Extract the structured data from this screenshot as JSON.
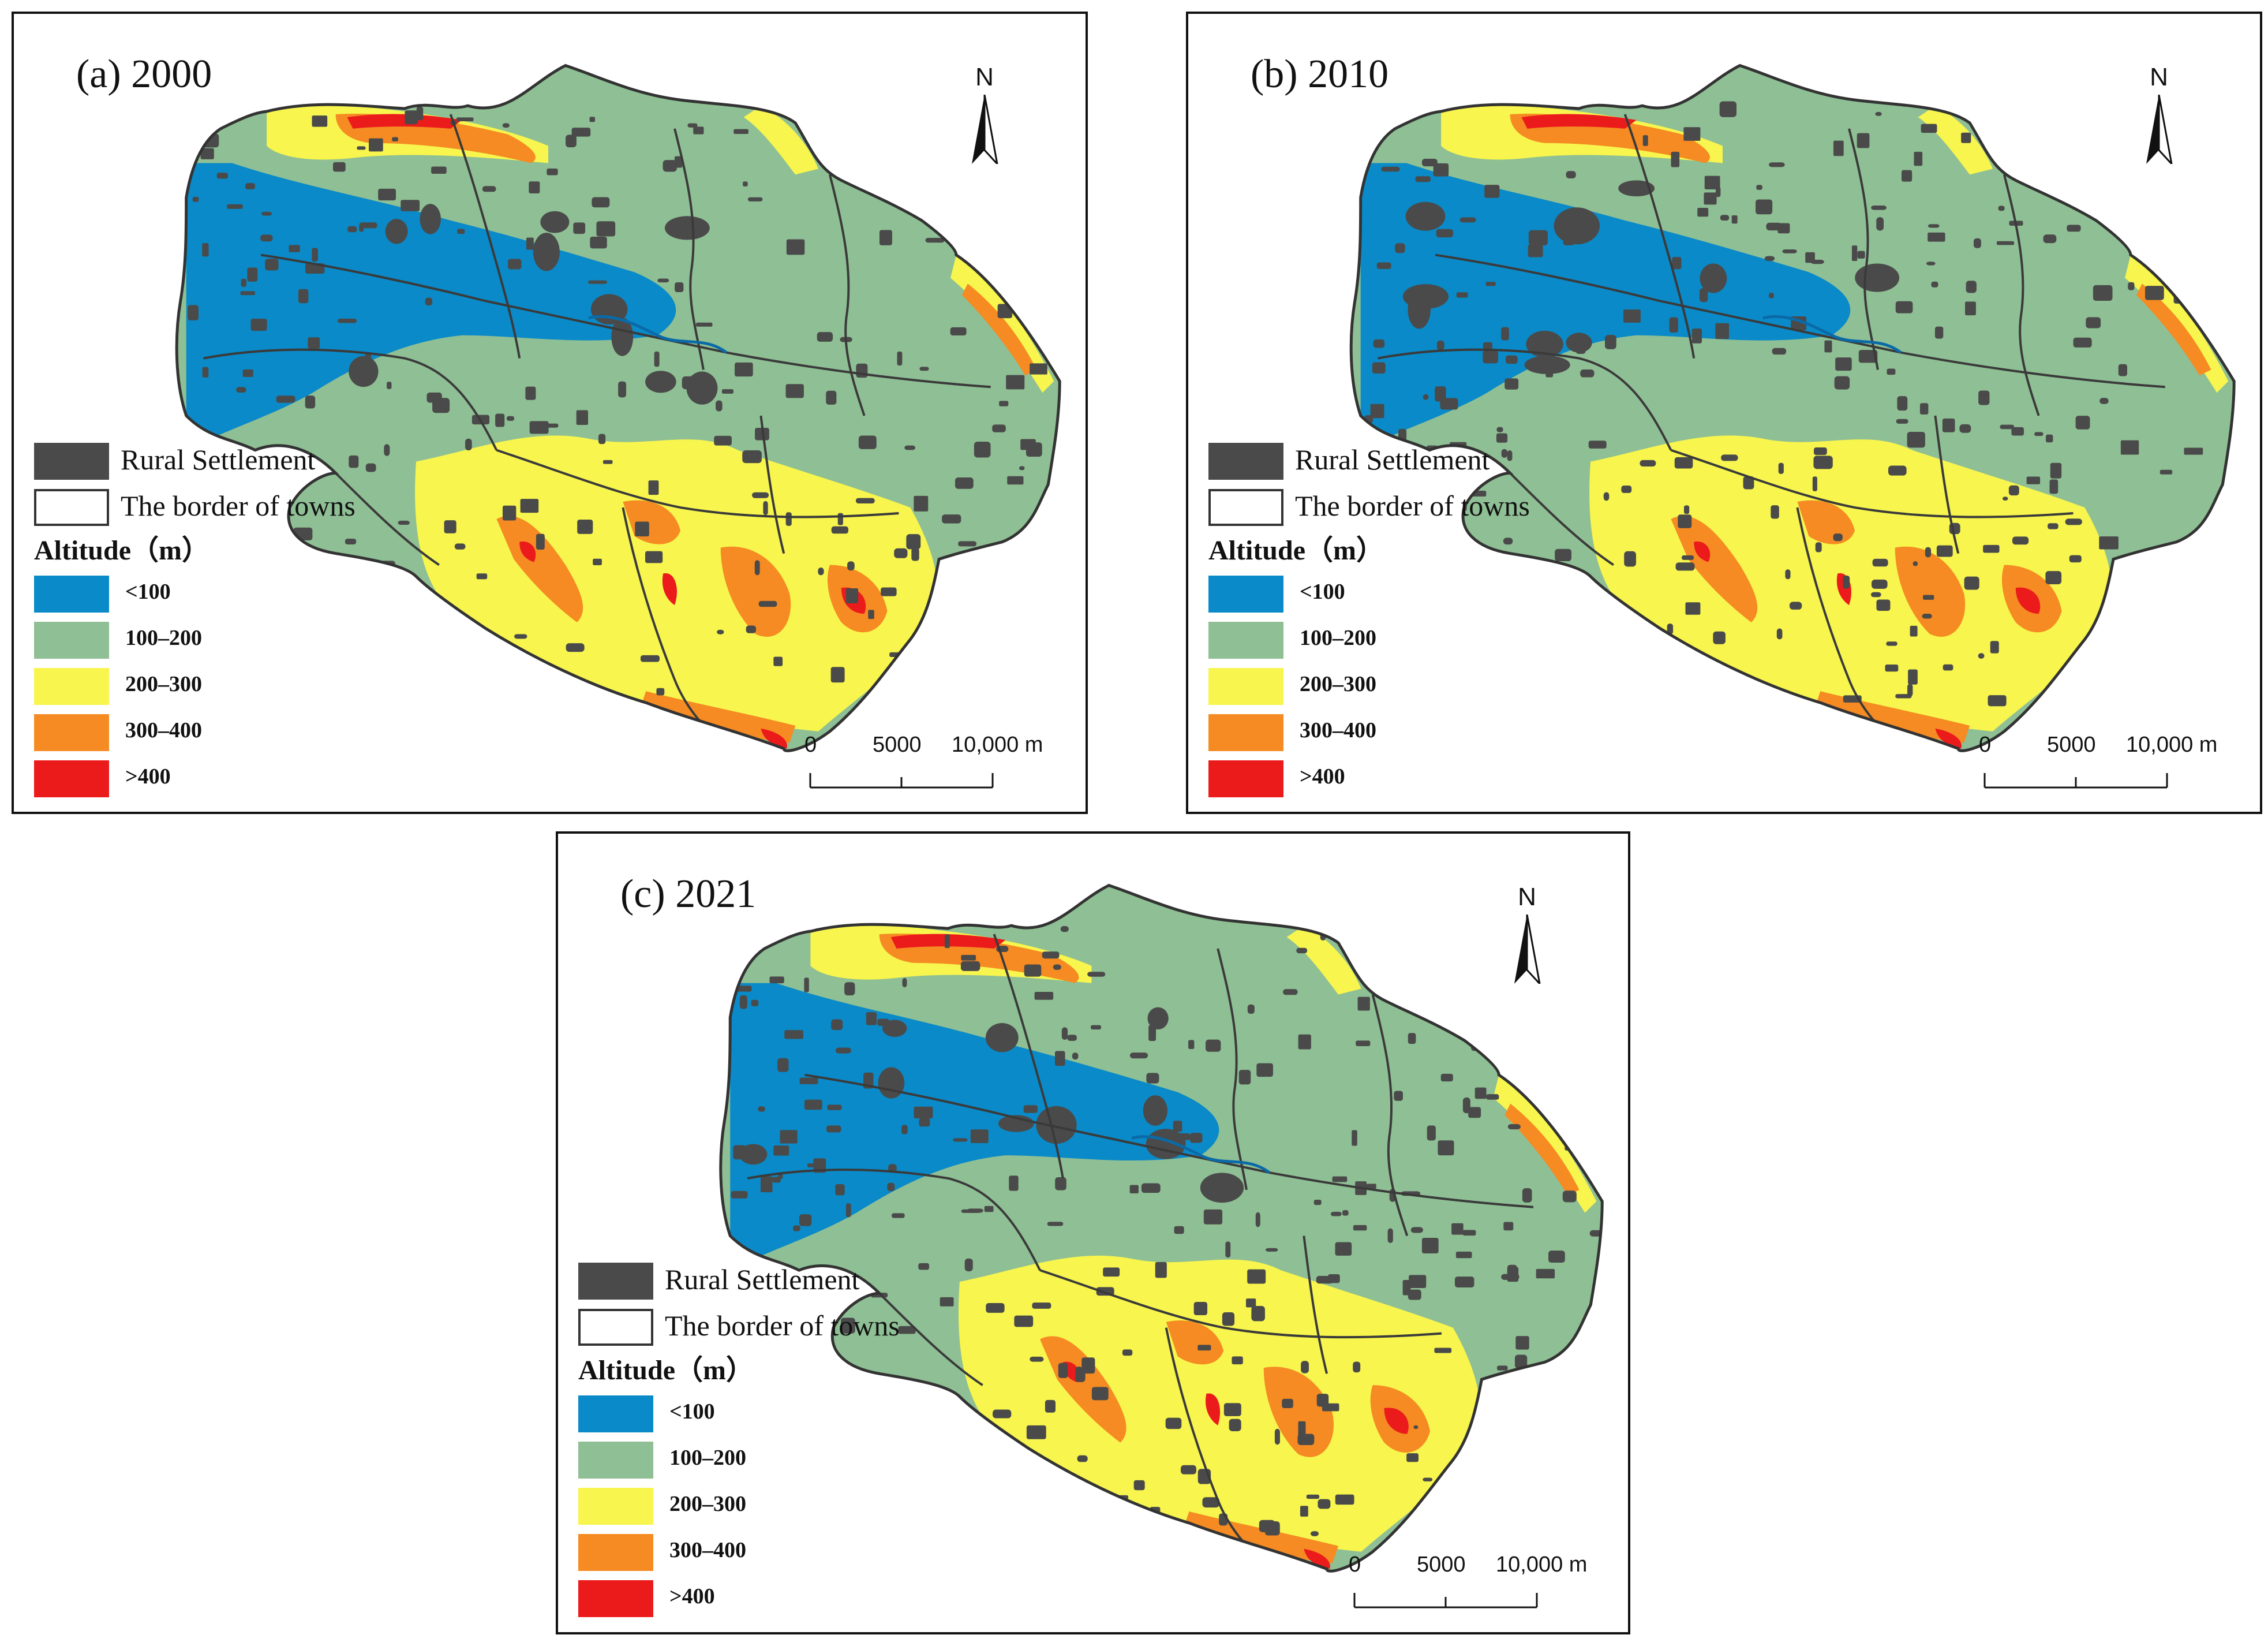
{
  "legend": {
    "settlement_label": "Rural Settlement",
    "border_label": "The border of towns",
    "altitude_title": "Altitude（m）",
    "classes": [
      {
        "label": "<100",
        "color": "#0a8ac8"
      },
      {
        "label": "100–200",
        "color": "#8fbf94"
      },
      {
        "label": "200–300",
        "color": "#f7f54e"
      },
      {
        "label": "300–400",
        "color": "#f58b22"
      },
      {
        "label": ">400",
        "color": "#ec1b1b"
      }
    ],
    "settlement_color": "#4a4a4a"
  },
  "north_label": "N",
  "scale_bar": {
    "labels": [
      "0",
      "5000",
      "10,000 m"
    ]
  },
  "panels": [
    {
      "id": "a",
      "title": "(a) 2000"
    },
    {
      "id": "b",
      "title": "(b) 2010"
    },
    {
      "id": "c",
      "title": "(c) 2021"
    }
  ]
}
